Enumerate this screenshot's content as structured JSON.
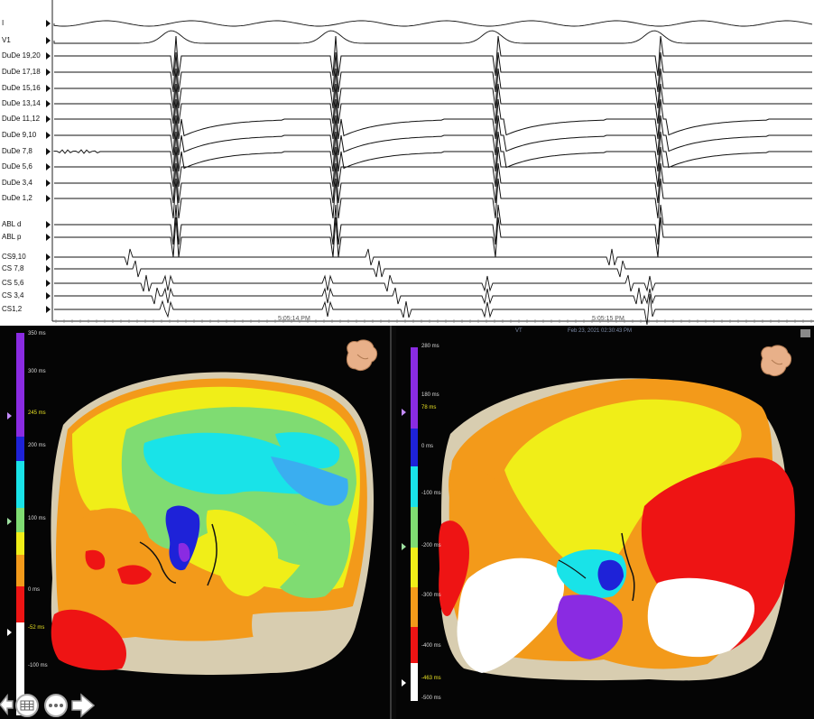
{
  "egm": {
    "channels": [
      "I",
      "V1",
      "DuDe 19,20",
      "DuDe 17,18",
      "DuDe 15,16",
      "DuDe 13,14",
      "DuDe 11,12",
      "DuDe 9,10",
      "DuDe 7,8",
      "DuDe 5,6",
      "DuDe 3,4",
      "DuDe 1,2",
      "ABL d",
      "ABL p",
      "CS9,10",
      "CS 7,8",
      "CS 5,6",
      "CS 3,4",
      "CS1,2"
    ],
    "time_labels": [
      "5:05:14 PM",
      "5:05:15 PM"
    ]
  },
  "left_map": {
    "scale_labels": [
      "350 ms",
      "300 ms",
      "245 ms",
      "200 ms",
      "100 ms",
      "0 ms",
      "-52 ms",
      "-100 ms"
    ],
    "highlighted_labels": [
      "245 ms",
      "-52 ms"
    ],
    "orientation_icon": "heart-orientation-icon"
  },
  "right_map": {
    "header_title": "VT",
    "header_date": "Feb 23, 2021 02:30:43 PM",
    "scale_labels": [
      "280 ms",
      "180 ms",
      "78 ms",
      "0 ms",
      "-100 ms",
      "-200 ms",
      "-300 ms",
      "-400 ms",
      "-463 ms",
      "-500 ms"
    ],
    "highlighted_labels": [
      "78 ms",
      "-463 ms"
    ],
    "orientation_icon": "heart-orientation-icon"
  },
  "toolbar": {
    "icons": [
      "back-icon",
      "grid-icon",
      "more-icon",
      "forward-icon"
    ]
  },
  "colors": {
    "purple": "#8a2be2",
    "blue": "#1e22d8",
    "cyan": "#19e3e8",
    "green": "#7fdc72",
    "yellow": "#f0ee18",
    "orange": "#f39a1a",
    "red": "#ee1414",
    "white": "#ffffff",
    "tissue": "#d8cdb0"
  }
}
